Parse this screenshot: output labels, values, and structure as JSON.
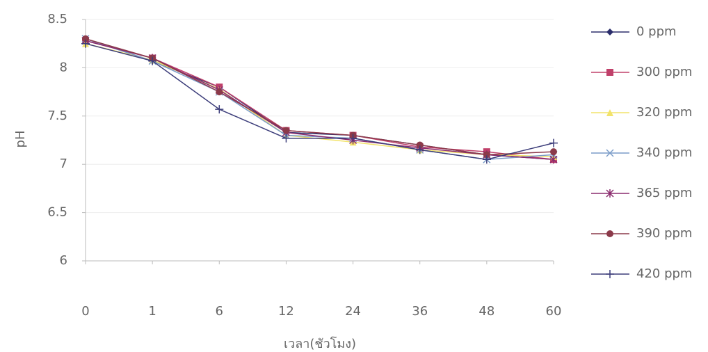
{
  "chart_data": {
    "type": "line",
    "x_label": "เวลา(ชัวโมง)",
    "y_label": "pH",
    "categories": [
      "0",
      "1",
      "6",
      "12",
      "24",
      "36",
      "48",
      "60"
    ],
    "ylim": [
      6,
      8.5
    ],
    "yticks": [
      6,
      6.5,
      7,
      7.5,
      8,
      8.5
    ],
    "grid": true,
    "legend": "right",
    "series": [
      {
        "name": "0 ppm",
        "color": "#2b2d6b",
        "marker": "diamond",
        "values": [
          8.3,
          8.07,
          7.8,
          7.33,
          7.3,
          7.2,
          7.1,
          7.05
        ]
      },
      {
        "name": "300 ppm",
        "color": "#c0406a",
        "marker": "square",
        "values": [
          8.28,
          8.1,
          7.8,
          7.35,
          7.3,
          7.18,
          7.13,
          7.05
        ]
      },
      {
        "name": "320 ppm",
        "color": "#f2e36a",
        "marker": "triangle",
        "values": [
          8.25,
          8.08,
          7.78,
          7.3,
          7.23,
          7.15,
          7.1,
          7.08
        ]
      },
      {
        "name": "340 ppm",
        "color": "#7a9cc8",
        "marker": "x",
        "values": [
          8.3,
          8.07,
          7.75,
          7.3,
          7.27,
          7.15,
          7.05,
          7.1
        ]
      },
      {
        "name": "365 ppm",
        "color": "#8a2c6e",
        "marker": "star",
        "values": [
          8.28,
          8.1,
          7.77,
          7.33,
          7.25,
          7.17,
          7.1,
          7.05
        ]
      },
      {
        "name": "390 ppm",
        "color": "#8b3a4a",
        "marker": "circle",
        "values": [
          8.3,
          8.1,
          7.75,
          7.35,
          7.3,
          7.2,
          7.1,
          7.13
        ]
      },
      {
        "name": "420 ppm",
        "color": "#3c3d7a",
        "marker": "plus",
        "values": [
          8.25,
          8.07,
          7.57,
          7.27,
          7.27,
          7.15,
          7.05,
          7.22
        ]
      }
    ]
  }
}
